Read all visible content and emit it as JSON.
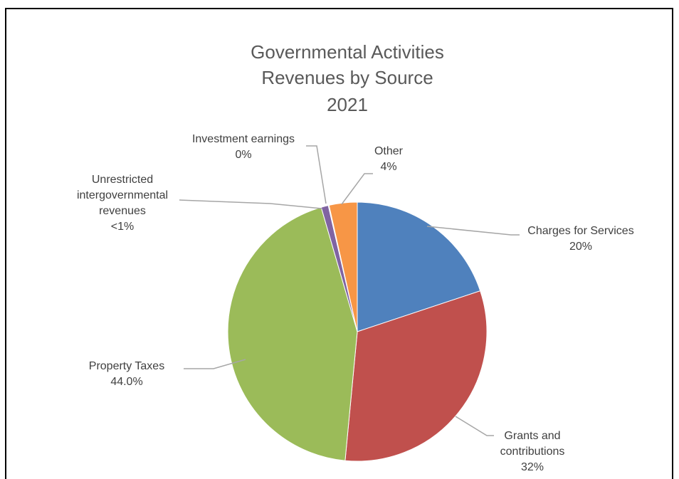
{
  "chart_data": {
    "type": "pie",
    "title": [
      "Governmental Activities",
      "Revenues by Source",
      "2021"
    ],
    "slices": [
      {
        "name": "Charges for Services",
        "label_lines": [
          "Charges for Services"
        ],
        "pct_label": "20%",
        "value": 19.9,
        "color": "#4f81bd"
      },
      {
        "name": "Grants and contributions",
        "label_lines": [
          "Grants and",
          "contributions"
        ],
        "pct_label": "32%",
        "value": 31.6,
        "color": "#c0504d"
      },
      {
        "name": "Property Taxes",
        "label_lines": [
          "Property Taxes"
        ],
        "pct_label": "44.0%",
        "value": 44.0,
        "color": "#9bbb59"
      },
      {
        "name": "Unrestricted intergovernmental revenues",
        "label_lines": [
          "Unrestricted",
          "intergovernmental",
          "revenues"
        ],
        "pct_label": "<1%",
        "value": 0.9,
        "color": "#8064a2"
      },
      {
        "name": "Investment earnings",
        "label_lines": [
          "Investment earnings"
        ],
        "pct_label": "0%",
        "value": 0.1,
        "color": "#4bacc6"
      },
      {
        "name": "Other",
        "label_lines": [
          "Other"
        ],
        "pct_label": "4%",
        "value": 3.5,
        "color": "#f79646"
      }
    ],
    "start_angle": "12 o'clock",
    "direction": "clockwise",
    "legend": "none"
  }
}
